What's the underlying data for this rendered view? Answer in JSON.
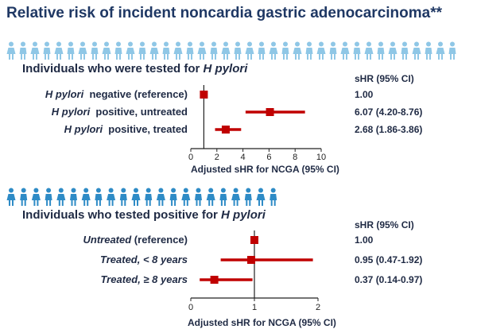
{
  "title": "Relative risk of incident noncardia gastric adenocarcinoma**",
  "colors": {
    "marker": "#c00000",
    "people_light": "#8fc7e6",
    "people_dark": "#2e8bc6",
    "text": "#1f2a44",
    "title": "#1f3864"
  },
  "icons": {
    "top_row": "person-icon",
    "bottom_row": "person-icon",
    "top_count": 38,
    "bottom_count": 22
  },
  "chart_data": [
    {
      "type": "forest",
      "heading_prefix": "Individuals who were tested for ",
      "heading_italic": "H pylori",
      "hr_header": "sHR (95% CI)",
      "xlabel": "Adjusted sHR for NCGA (95% CI)",
      "xlim": [
        0,
        10
      ],
      "xticks": [
        0,
        2,
        4,
        6,
        8,
        10
      ],
      "tick_labels": [
        "0",
        "2",
        "4",
        "6",
        "8",
        "10"
      ],
      "reference_line": 1,
      "rows": [
        {
          "label_italic": "H pylori",
          "label_rest": "  negative (reference)",
          "estimate": 1.0,
          "lower": 1.0,
          "upper": 1.0,
          "hr_text": "1.00"
        },
        {
          "label_italic": "H pylori",
          "label_rest": "  positive, untreated",
          "estimate": 6.07,
          "lower": 4.2,
          "upper": 8.76,
          "hr_text": "6.07 (4.20-8.76)"
        },
        {
          "label_italic": "H pylori",
          "label_rest": "  positive, treated",
          "estimate": 2.68,
          "lower": 1.86,
          "upper": 3.86,
          "hr_text": "2.68 (1.86-3.86)"
        }
      ]
    },
    {
      "type": "forest",
      "heading_prefix": "Individuals who tested positive for ",
      "heading_italic": "H pylori",
      "hr_header": "sHR (95% CI)",
      "xlabel": "Adjusted sHR for NCGA (95% CI)",
      "xlim": [
        0,
        2
      ],
      "xticks": [
        0,
        1,
        2
      ],
      "tick_labels": [
        "0",
        "1",
        "2"
      ],
      "reference_line": 1,
      "rows": [
        {
          "label_italic": "Untreated",
          "label_rest": " (reference)",
          "estimate": 1.0,
          "lower": 1.0,
          "upper": 1.0,
          "hr_text": "1.00"
        },
        {
          "label_italic": "Treated, < 8 years",
          "label_rest": "",
          "estimate": 0.95,
          "lower": 0.47,
          "upper": 1.92,
          "hr_text": "0.95 (0.47-1.92)"
        },
        {
          "label_italic": "Treated, ≥ 8 years",
          "label_rest": "",
          "estimate": 0.37,
          "lower": 0.14,
          "upper": 0.97,
          "hr_text": "0.37 (0.14-0.97)"
        }
      ]
    }
  ]
}
